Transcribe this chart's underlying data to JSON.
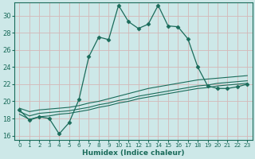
{
  "xlabel": "Humidex (Indice chaleur)",
  "ylabel": "",
  "bg_color": "#cde8e8",
  "line_color": "#1a6b5a",
  "grid_color": "#b8d8d8",
  "xlim": [
    -0.5,
    23.5
  ],
  "ylim": [
    15.5,
    31.5
  ],
  "xticks": [
    0,
    1,
    2,
    3,
    4,
    5,
    6,
    7,
    8,
    9,
    10,
    11,
    12,
    13,
    14,
    15,
    16,
    17,
    18,
    19,
    20,
    21,
    22,
    23
  ],
  "yticks": [
    16,
    18,
    20,
    22,
    24,
    26,
    28,
    30
  ],
  "line1_x": [
    0,
    1,
    2,
    3,
    4,
    5,
    6,
    7,
    8,
    9,
    10,
    11,
    12,
    13,
    14,
    15,
    16,
    17,
    18,
    19,
    20,
    21,
    22,
    23
  ],
  "line1_y": [
    19.0,
    17.8,
    18.2,
    18.0,
    16.2,
    17.5,
    20.2,
    25.2,
    27.5,
    27.2,
    31.2,
    29.3,
    28.5,
    29.0,
    31.2,
    28.8,
    28.7,
    27.3,
    24.0,
    21.8,
    21.5,
    21.5,
    21.7,
    22.0
  ],
  "line2_x": [
    0,
    1,
    2,
    3,
    4,
    5,
    6,
    7,
    8,
    9,
    10,
    11,
    12,
    13,
    14,
    15,
    16,
    17,
    18,
    19,
    20,
    21,
    22,
    23
  ],
  "line2_y": [
    19.2,
    18.8,
    19.0,
    19.1,
    19.2,
    19.3,
    19.5,
    19.8,
    20.0,
    20.3,
    20.6,
    20.9,
    21.2,
    21.5,
    21.7,
    21.9,
    22.1,
    22.3,
    22.5,
    22.6,
    22.7,
    22.8,
    22.9,
    23.0
  ],
  "line3_x": [
    0,
    1,
    2,
    3,
    4,
    5,
    6,
    7,
    8,
    9,
    10,
    11,
    12,
    13,
    14,
    15,
    16,
    17,
    18,
    19,
    20,
    21,
    22,
    23
  ],
  "line3_y": [
    18.8,
    18.3,
    18.6,
    18.7,
    18.8,
    18.9,
    19.1,
    19.3,
    19.6,
    19.8,
    20.1,
    20.3,
    20.6,
    20.8,
    21.0,
    21.2,
    21.4,
    21.6,
    21.8,
    21.9,
    22.1,
    22.2,
    22.3,
    22.4
  ],
  "line4_x": [
    0,
    1,
    2,
    3,
    4,
    5,
    6,
    7,
    8,
    9,
    10,
    11,
    12,
    13,
    14,
    15,
    16,
    17,
    18,
    19,
    20,
    21,
    22,
    23
  ],
  "line4_y": [
    18.5,
    17.9,
    18.2,
    18.3,
    18.5,
    18.6,
    18.8,
    19.0,
    19.3,
    19.5,
    19.8,
    20.0,
    20.3,
    20.5,
    20.7,
    20.9,
    21.1,
    21.3,
    21.5,
    21.6,
    21.8,
    21.9,
    22.0,
    22.1
  ]
}
